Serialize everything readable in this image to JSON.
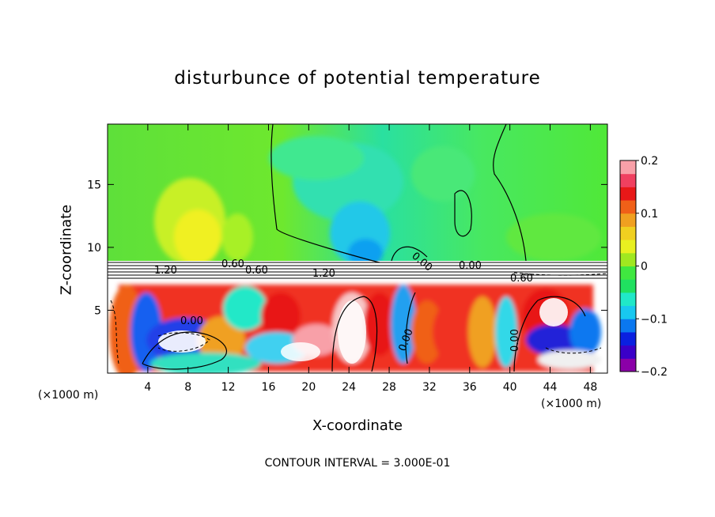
{
  "chart_data": {
    "type": "heatmap",
    "title": "disturbunce of potential temperature",
    "xlabel": "X-coordinate",
    "ylabel": "Z-coordinate",
    "x_unit_label": "(×1000 m)",
    "x_ticks": [
      4,
      8,
      12,
      16,
      20,
      24,
      28,
      32,
      36,
      40,
      44,
      48
    ],
    "y_ticks": [
      5,
      10,
      15
    ],
    "xlim": [
      0,
      49.7
    ],
    "ylim": [
      0,
      19.8
    ],
    "colorbar": {
      "ticks": [
        "0.2",
        "0.1",
        "0",
        "−0.1",
        "−0.2"
      ],
      "tick_values": [
        0.2,
        0.1,
        0,
        -0.1,
        -0.2
      ],
      "range": [
        -0.2,
        0.2
      ],
      "colors": [
        "#8b00a8",
        "#3a00c8",
        "#0a20e0",
        "#0a78f0",
        "#18c8f0",
        "#20e8c8",
        "#20e060",
        "#40e840",
        "#a0e820",
        "#e8f020",
        "#f0d020",
        "#f0a020",
        "#f06018",
        "#e81818",
        "#f04060",
        "#f8a0a8"
      ]
    },
    "contour_labels": [
      "1.20",
      "0.60",
      "0.60",
      "1.20",
      "0.00",
      "0.00",
      "0.00",
      "0.00",
      "0.60",
      "0.00"
    ],
    "contour_interval_text": "CONTOUR INTERVAL = 3.000E-01"
  }
}
